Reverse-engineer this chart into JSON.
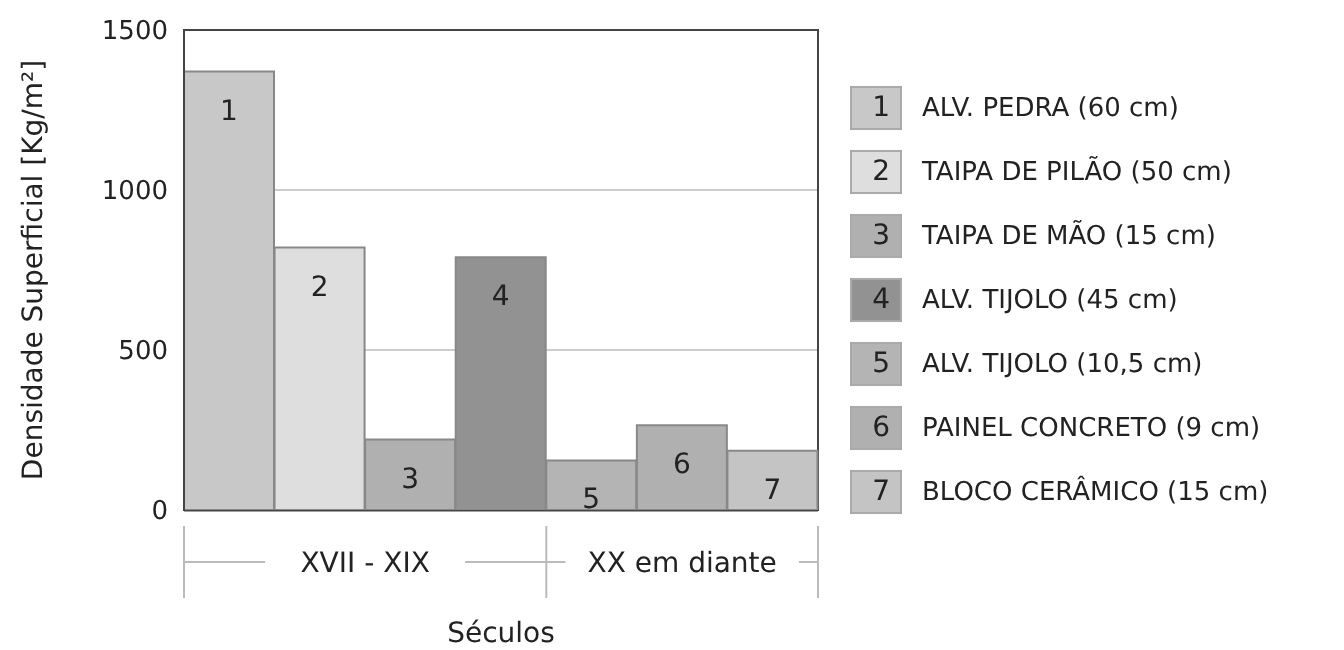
{
  "chart_data": {
    "type": "bar",
    "stacked": true,
    "ylabel": "Densidade Superficial [Kg/m²]",
    "xlabel": "Séculos",
    "categories": [
      "1",
      "2",
      "3",
      "4",
      "5",
      "6",
      "7"
    ],
    "series": [
      {
        "name": "ALV. PEDRA (60 cm)",
        "color": "#c8c8c8",
        "values": [
          1370,
          null,
          null,
          null,
          null,
          null,
          null
        ]
      },
      {
        "name": "TAIPA DE PILÃO (50 cm)",
        "color": "#dedede",
        "values": [
          null,
          820,
          null,
          null,
          null,
          null,
          null
        ]
      },
      {
        "name": "TAIPA DE MÃO (15 cm)",
        "color": "#b0b0b0",
        "values": [
          null,
          null,
          220,
          null,
          null,
          null,
          null
        ]
      },
      {
        "name": "ALV. TIJOLO (45 cm)",
        "color": "#929292",
        "values": [
          null,
          null,
          null,
          790,
          null,
          null,
          null
        ]
      },
      {
        "name": "ALV. TIJOLO (10,5 cm)",
        "color": "#b4b4b4",
        "values": [
          null,
          null,
          null,
          null,
          155,
          null,
          null
        ]
      },
      {
        "name": "PAINEL CONCRETO (9 cm)",
        "color": "#b0b0b0",
        "values": [
          null,
          null,
          null,
          null,
          null,
          265,
          null
        ]
      },
      {
        "name": "BLOCO CERÂMICO (15 cm)",
        "color": "#c4c4c4",
        "values": [
          null,
          null,
          null,
          null,
          null,
          null,
          185
        ]
      }
    ],
    "annotations": [
      "XVII - XIX",
      "XX em diante"
    ],
    "ylim": [
      0,
      1500
    ],
    "yticks": [
      0,
      500,
      1000,
      1500
    ],
    "grid": "y",
    "legend": "right"
  }
}
